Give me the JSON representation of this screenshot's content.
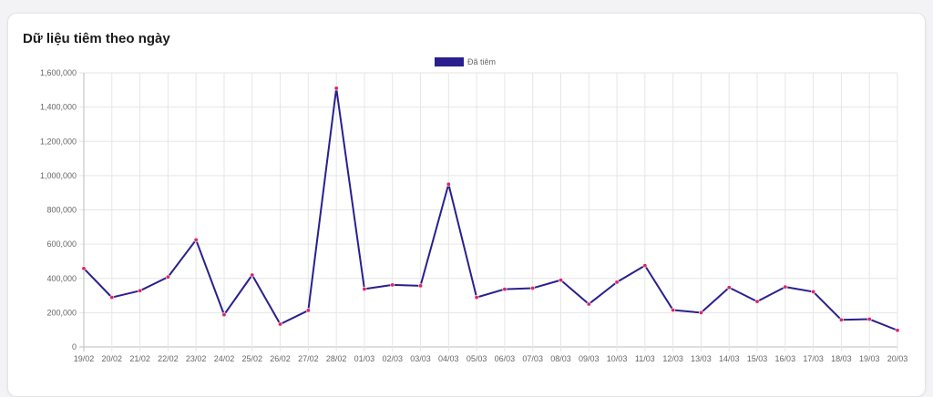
{
  "card": {
    "title": "Dữ liệu tiêm theo ngày"
  },
  "chart_data": {
    "type": "line",
    "title": "",
    "xlabel": "",
    "ylabel": "",
    "ylim": [
      0,
      1600000
    ],
    "yticks": [
      "0",
      "200,000",
      "400,000",
      "600,000",
      "800,000",
      "1,000,000",
      "1,200,000",
      "1,400,000",
      "1,600,000"
    ],
    "grid": true,
    "legend_position": "top",
    "categories": [
      "19/02",
      "20/02",
      "21/02",
      "22/02",
      "23/02",
      "24/02",
      "25/02",
      "26/02",
      "27/02",
      "28/02",
      "01/03",
      "02/03",
      "03/03",
      "04/03",
      "05/03",
      "06/03",
      "07/03",
      "08/03",
      "09/03",
      "10/03",
      "11/03",
      "12/03",
      "13/03",
      "14/03",
      "15/03",
      "16/03",
      "17/03",
      "18/03",
      "19/03",
      "20/03"
    ],
    "series": [
      {
        "name": "Đã tiêm",
        "color": "#2a1f8f",
        "point_color": "#e0245e",
        "values": [
          458000,
          289000,
          328000,
          408000,
          625000,
          188000,
          420000,
          133000,
          213000,
          1510000,
          338000,
          362000,
          357000,
          950000,
          289000,
          337000,
          343000,
          390000,
          250000,
          378000,
          475000,
          215000,
          200000,
          347000,
          265000,
          350000,
          322000,
          158000,
          162000,
          97000
        ]
      }
    ]
  }
}
